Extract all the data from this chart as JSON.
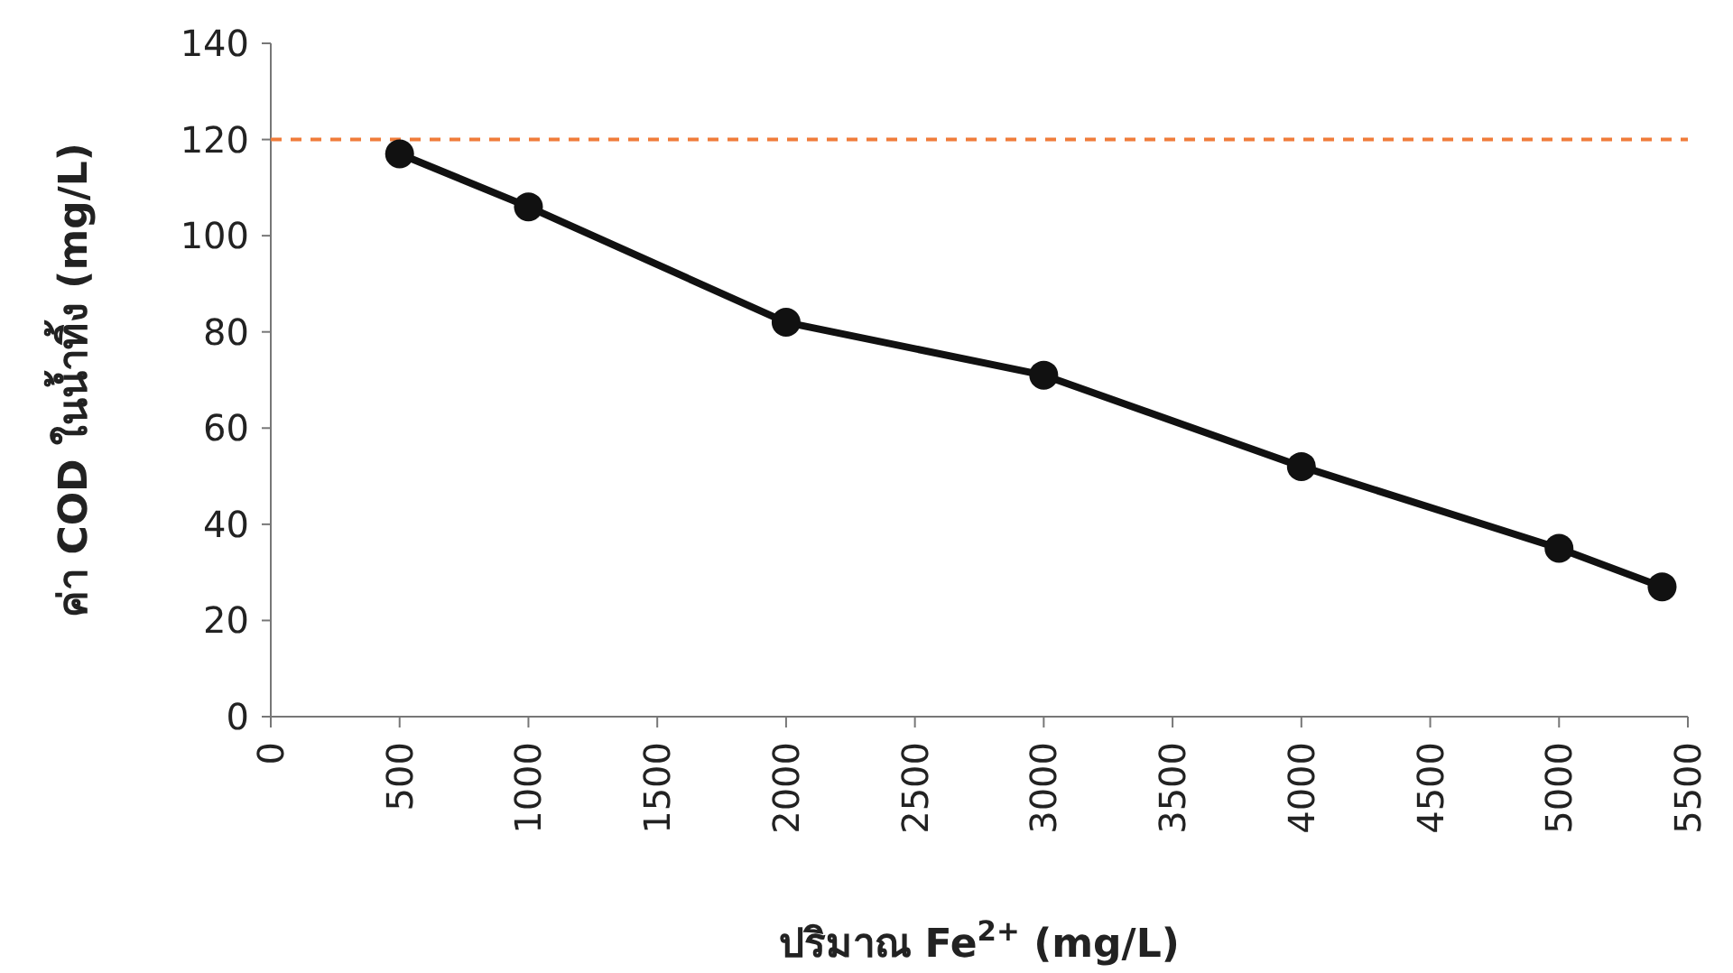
{
  "chart_data": {
    "type": "line",
    "xlabel": "ปริมาณ Fe$^{2+}$ (mg/L)",
    "ylabel": "ค่า COD ในน้ำทิ้ง (mg/L)",
    "x": [
      500,
      1000,
      2000,
      3000,
      4000,
      5000,
      5400
    ],
    "series": [
      {
        "color": "#111111",
        "values": [
          117,
          106,
          82,
          71,
          52,
          35,
          27
        ]
      }
    ],
    "marker": "circle",
    "line_style": "solid",
    "grid": false,
    "xlim": [
      0,
      5500
    ],
    "xticks": [
      0,
      500,
      1000,
      1500,
      2000,
      2500,
      3000,
      3500,
      4000,
      4500,
      5000,
      5500
    ],
    "ylim": [
      0,
      140
    ],
    "yticks": [
      0,
      20,
      40,
      60,
      80,
      100,
      120,
      140
    ],
    "ref_lines": [
      {
        "axis": "y",
        "value": 120,
        "color": "#f07c3a",
        "line_style": "dashed"
      }
    ]
  }
}
